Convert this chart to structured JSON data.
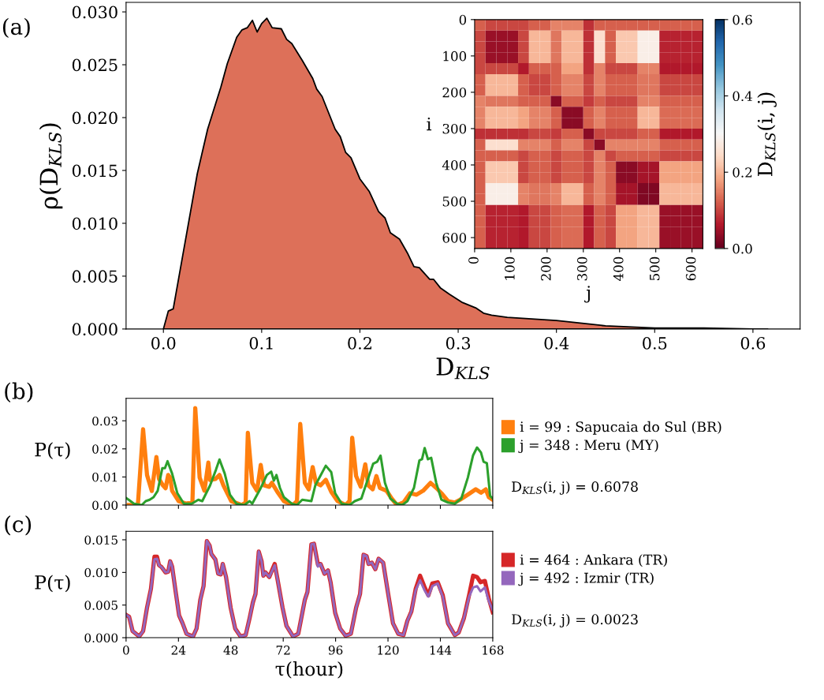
{
  "chart_data": [
    {
      "type": "area",
      "title": "(a)",
      "xlabel": "D$_{KLS}$",
      "ylabel": "ρ(D$_{KLS}$)",
      "x": [
        0.0,
        0.005,
        0.01,
        0.0345,
        0.045,
        0.0585,
        0.065,
        0.0746,
        0.08,
        0.0853,
        0.0906,
        0.0954,
        0.1,
        0.1053,
        0.1107,
        0.12,
        0.1254,
        0.1307,
        0.1414,
        0.152,
        0.156,
        0.1615,
        0.1748,
        0.18,
        0.1855,
        0.1909,
        0.2,
        0.2096,
        0.219,
        0.2256,
        0.231,
        0.2403,
        0.2483,
        0.255,
        0.2604,
        0.271,
        0.275,
        0.2818,
        0.291,
        0.3045,
        0.3178,
        0.3258,
        0.334,
        0.35,
        0.4,
        0.43,
        0.45,
        0.5,
        0.55,
        0.6,
        0.615
      ],
      "series": [
        {
          "color": "#000000",
          "values": [
            0.0,
            0.0017,
            0.0019,
            0.0147,
            0.0189,
            0.0229,
            0.0251,
            0.0276,
            0.0283,
            0.0285,
            0.0292,
            0.0281,
            0.0289,
            0.0294,
            0.0285,
            0.0284,
            0.0274,
            0.027,
            0.0254,
            0.0237,
            0.0227,
            0.022,
            0.0189,
            0.0182,
            0.0167,
            0.0162,
            0.0142,
            0.013,
            0.0111,
            0.0105,
            0.0091,
            0.0085,
            0.0072,
            0.0059,
            0.0058,
            0.0047,
            0.0047,
            0.0039,
            0.0033,
            0.0025,
            0.002,
            0.0015,
            0.0013,
            0.0011,
            0.0008,
            0.0005,
            0.0003,
            0.0001,
            0.0001,
            0.0,
            0.0
          ]
        }
      ],
      "xlim": [
        -0.038,
        0.648
      ],
      "ylim": [
        0,
        0.0309
      ],
      "xticks": [
        {
          "value": 0.0,
          "label": "0.0"
        },
        0.1,
        0.2,
        0.3,
        0.4,
        0.5,
        0.6
      ],
      "yticks": [
        {
          "value": 0,
          "label": "0.000"
        },
        {
          "value": 0.005,
          "label": "0.005"
        },
        {
          "value": 0.01,
          "label": "0.010"
        },
        {
          "value": 0.015,
          "label": "0.015"
        },
        {
          "value": 0.02,
          "label": "0.020"
        },
        {
          "value": 0.025,
          "label": "0.025"
        },
        {
          "value": 0.03,
          "label": "0.030"
        }
      ]
    },
    {
      "type": "heatmap",
      "xlabel": "j",
      "ylabel": "i",
      "clabel": "D$_{KLS}$(i, j)",
      "x": [
        15,
        45,
        75,
        105,
        135,
        165,
        195,
        225,
        255,
        285,
        315,
        345,
        375,
        405,
        435,
        465,
        495,
        525,
        555,
        585,
        615
      ],
      "cells": [
        [
          0.12,
          0.1,
          0.1,
          0.1,
          0.1,
          0.12,
          0.12,
          0.15,
          0.15,
          0.15,
          0.08,
          0.12,
          0.12,
          0.12,
          0.12,
          0.12,
          0.12,
          0.12,
          0.12,
          0.12,
          0.12
        ],
        [
          0.1,
          0.04,
          0.04,
          0.04,
          0.1,
          0.2,
          0.2,
          0.14,
          0.2,
          0.2,
          0.08,
          0.25,
          0.12,
          0.22,
          0.22,
          0.28,
          0.28,
          0.07,
          0.07,
          0.07,
          0.07
        ],
        [
          0.1,
          0.04,
          0.04,
          0.04,
          0.1,
          0.2,
          0.2,
          0.14,
          0.2,
          0.2,
          0.08,
          0.25,
          0.12,
          0.22,
          0.22,
          0.28,
          0.28,
          0.07,
          0.07,
          0.07,
          0.07
        ],
        [
          0.1,
          0.04,
          0.04,
          0.04,
          0.1,
          0.2,
          0.2,
          0.14,
          0.2,
          0.2,
          0.08,
          0.25,
          0.12,
          0.22,
          0.22,
          0.28,
          0.28,
          0.07,
          0.07,
          0.07,
          0.07
        ],
        [
          0.1,
          0.1,
          0.1,
          0.1,
          0.06,
          0.12,
          0.12,
          0.12,
          0.18,
          0.18,
          0.08,
          0.15,
          0.1,
          0.1,
          0.1,
          0.15,
          0.15,
          0.06,
          0.06,
          0.06,
          0.06
        ],
        [
          0.12,
          0.2,
          0.2,
          0.2,
          0.12,
          0.1,
          0.1,
          0.12,
          0.15,
          0.15,
          0.1,
          0.15,
          0.12,
          0.12,
          0.12,
          0.14,
          0.14,
          0.1,
          0.1,
          0.1,
          0.1
        ],
        [
          0.12,
          0.2,
          0.2,
          0.2,
          0.12,
          0.1,
          0.1,
          0.12,
          0.15,
          0.15,
          0.1,
          0.15,
          0.12,
          0.12,
          0.12,
          0.14,
          0.14,
          0.1,
          0.1,
          0.1,
          0.1
        ],
        [
          0.15,
          0.14,
          0.14,
          0.14,
          0.12,
          0.12,
          0.12,
          0.03,
          0.12,
          0.12,
          0.09,
          0.12,
          0.1,
          0.1,
          0.1,
          0.15,
          0.15,
          0.12,
          0.12,
          0.12,
          0.12
        ],
        [
          0.15,
          0.2,
          0.2,
          0.2,
          0.18,
          0.15,
          0.15,
          0.12,
          0.03,
          0.03,
          0.12,
          0.15,
          0.12,
          0.12,
          0.12,
          0.2,
          0.2,
          0.13,
          0.13,
          0.13,
          0.13
        ],
        [
          0.15,
          0.2,
          0.2,
          0.2,
          0.18,
          0.15,
          0.15,
          0.12,
          0.03,
          0.03,
          0.12,
          0.15,
          0.12,
          0.12,
          0.12,
          0.2,
          0.2,
          0.13,
          0.13,
          0.13,
          0.13
        ],
        [
          0.08,
          0.08,
          0.08,
          0.08,
          0.08,
          0.1,
          0.1,
          0.09,
          0.12,
          0.12,
          0.03,
          0.1,
          0.1,
          0.1,
          0.1,
          0.12,
          0.12,
          0.06,
          0.06,
          0.06,
          0.06
        ],
        [
          0.12,
          0.25,
          0.25,
          0.25,
          0.15,
          0.15,
          0.15,
          0.12,
          0.15,
          0.15,
          0.1,
          0.03,
          0.15,
          0.15,
          0.15,
          0.15,
          0.15,
          0.12,
          0.12,
          0.12,
          0.12
        ],
        [
          0.12,
          0.12,
          0.12,
          0.12,
          0.1,
          0.12,
          0.12,
          0.1,
          0.12,
          0.12,
          0.1,
          0.15,
          0.1,
          0.12,
          0.12,
          0.12,
          0.12,
          0.1,
          0.1,
          0.1,
          0.1
        ],
        [
          0.12,
          0.22,
          0.22,
          0.22,
          0.1,
          0.12,
          0.12,
          0.1,
          0.12,
          0.12,
          0.1,
          0.15,
          0.12,
          0.03,
          0.03,
          0.05,
          0.05,
          0.18,
          0.18,
          0.18,
          0.18
        ],
        [
          0.12,
          0.22,
          0.22,
          0.22,
          0.1,
          0.12,
          0.12,
          0.1,
          0.12,
          0.12,
          0.1,
          0.15,
          0.12,
          0.03,
          0.03,
          0.05,
          0.05,
          0.18,
          0.18,
          0.18,
          0.18
        ],
        [
          0.12,
          0.28,
          0.28,
          0.28,
          0.15,
          0.14,
          0.14,
          0.15,
          0.2,
          0.2,
          0.12,
          0.15,
          0.12,
          0.05,
          0.05,
          0.02,
          0.02,
          0.2,
          0.2,
          0.2,
          0.2
        ],
        [
          0.12,
          0.28,
          0.28,
          0.28,
          0.15,
          0.14,
          0.14,
          0.15,
          0.2,
          0.2,
          0.12,
          0.15,
          0.12,
          0.05,
          0.05,
          0.02,
          0.02,
          0.2,
          0.2,
          0.2,
          0.2
        ],
        [
          0.12,
          0.07,
          0.07,
          0.07,
          0.06,
          0.1,
          0.1,
          0.12,
          0.13,
          0.13,
          0.06,
          0.12,
          0.1,
          0.18,
          0.18,
          0.2,
          0.2,
          0.04,
          0.04,
          0.04,
          0.04
        ],
        [
          0.12,
          0.07,
          0.07,
          0.07,
          0.06,
          0.1,
          0.1,
          0.12,
          0.13,
          0.13,
          0.06,
          0.12,
          0.1,
          0.18,
          0.18,
          0.2,
          0.2,
          0.04,
          0.04,
          0.04,
          0.04
        ],
        [
          0.12,
          0.07,
          0.07,
          0.07,
          0.06,
          0.1,
          0.1,
          0.12,
          0.13,
          0.13,
          0.06,
          0.12,
          0.1,
          0.18,
          0.18,
          0.2,
          0.2,
          0.04,
          0.04,
          0.04,
          0.04
        ],
        [
          0.12,
          0.07,
          0.07,
          0.07,
          0.06,
          0.1,
          0.1,
          0.12,
          0.13,
          0.13,
          0.06,
          0.12,
          0.1,
          0.18,
          0.18,
          0.2,
          0.2,
          0.04,
          0.04,
          0.04,
          0.04
        ]
      ],
      "xlim": [
        0,
        630
      ],
      "ylim": [
        630,
        0
      ],
      "xticks": [
        0,
        100,
        200,
        300,
        400,
        500,
        600
      ],
      "yticks": [
        0,
        100,
        200,
        300,
        400,
        500,
        600
      ],
      "clim": [
        0,
        0.6
      ],
      "cticks": [
        {
          "value": 0,
          "label": "0.0"
        },
        0.2,
        0.4,
        0.6
      ]
    },
    {
      "type": "line",
      "title": "(b)",
      "ylabel": "P(τ)",
      "legend": "right",
      "tick_labels": "y",
      "annotations": [
        "D$_{KLS}$(i, j) = 0.6078"
      ],
      "xlim": [
        0,
        168
      ],
      "ylim": [
        0,
        0.038
      ],
      "xticks": [
        0,
        24,
        48,
        72,
        96,
        120,
        144,
        168
      ],
      "yticks": [
        {
          "value": 0,
          "label": "0.00"
        },
        {
          "value": 0.01,
          "label": "0.01"
        },
        {
          "value": 0.02,
          "label": "0.02"
        },
        {
          "value": 0.03,
          "label": "0.03"
        }
      ],
      "series": [
        {
          "name": "i = 99 : Sapucaia do Sul (BR)",
          "color": "#ff7f0e",
          "x": [
            1.2,
            5.4,
            7.8,
            9.6,
            11.8,
            13.9,
            15.1,
            16.9,
            18.1,
            19.3,
            20.2,
            21.1,
            24.1,
            27.7,
            30.4,
            31.7,
            33.7,
            35.9,
            37.7,
            38.5,
            41,
            42.8,
            44.6,
            48.2,
            53,
            54.8,
            55.8,
            57.8,
            60,
            61.7,
            63.2,
            65.6,
            66.8,
            69.3,
            72.3,
            76.5,
            78.3,
            79.8,
            81.9,
            83.7,
            85.5,
            87,
            89.1,
            91.5,
            94,
            96.9,
            100.6,
            102.4,
            103.6,
            105.4,
            107.5,
            109.6,
            111,
            113,
            114.7,
            116.3,
            119.3,
            121.7,
            124.1,
            127.1,
            130.1,
            133.1,
            136.1,
            139.5,
            142.1,
            144.5,
            147.5,
            150.6,
            153,
            156.6,
            160.2,
            162.6,
            164.8,
            166.2,
            168
          ],
          "values": [
            0.0,
            0.0,
            0.027,
            0.0107,
            0.005,
            0.0171,
            0.0093,
            0.007,
            0.006,
            0.0107,
            0.0098,
            0.0051,
            0.0014,
            0.0005,
            0.001,
            0.0345,
            0.0098,
            0.0051,
            0.0151,
            0.0089,
            0.0093,
            0.0107,
            0.007,
            0.0014,
            0.0,
            0.0009,
            0.0257,
            0.0079,
            0.0051,
            0.0143,
            0.007,
            0.0065,
            0.0079,
            0.0047,
            0.0014,
            0.0,
            0.0014,
            0.0289,
            0.0079,
            0.0056,
            0.0135,
            0.0079,
            0.007,
            0.009,
            0.0047,
            0.0014,
            0.0,
            0.0014,
            0.024,
            0.0103,
            0.0065,
            0.0145,
            0.007,
            0.0056,
            0.0103,
            0.0061,
            0.0051,
            0.0023,
            0.0,
            0.0009,
            0.0042,
            0.0037,
            0.0051,
            0.0079,
            0.0061,
            0.0042,
            0.0014,
            0.0009,
            0.0019,
            0.0037,
            0.0056,
            0.0044,
            0.0056,
            0.0028,
            0.0019
          ]
        },
        {
          "name": "j = 348 : Meru (MY)",
          "color": "#2ca02c",
          "x": [
            0,
            1.2,
            3.6,
            7.2,
            9,
            10.8,
            12.6,
            14.5,
            16.6,
            17.8,
            19,
            21.1,
            23.5,
            26.5,
            30.1,
            33.1,
            34.9,
            38.5,
            41.2,
            42.8,
            45.2,
            47.6,
            50.6,
            54.2,
            56.6,
            57.8,
            61.4,
            64.5,
            66.5,
            67.7,
            68.9,
            70.5,
            72.3,
            75.9,
            78.3,
            80.7,
            84.9,
            86.7,
            91.5,
            94,
            95.8,
            98.8,
            102.4,
            104.8,
            107.8,
            109.6,
            113.2,
            115,
            116.6,
            118.6,
            121.1,
            124.1,
            126.5,
            128.9,
            131.9,
            134.4,
            135.6,
            136.8,
            138.3,
            139.8,
            142.1,
            144.5,
            147.5,
            150.6,
            153.6,
            156.6,
            159,
            160.8,
            162.6,
            163.8,
            165.3,
            166.8,
            168
          ],
          "values": [
            0.0025,
            0.0019,
            0.0005,
            0.0,
            0.0014,
            0.0019,
            0.0028,
            0.0051,
            0.0131,
            0.0131,
            0.0156,
            0.0112,
            0.0042,
            0.0005,
            0.0005,
            0.0019,
            0.0014,
            0.007,
            0.0126,
            0.0162,
            0.0112,
            0.0037,
            0.0005,
            0.0,
            0.0014,
            0.0005,
            0.0056,
            0.0107,
            0.0119,
            0.0087,
            0.0107,
            0.0061,
            0.0028,
            0.0005,
            0.0,
            0.0019,
            0.0014,
            0.007,
            0.014,
            0.0117,
            0.0042,
            0.0005,
            0.0,
            0.0014,
            0.0023,
            0.0065,
            0.0147,
            0.0154,
            0.0176,
            0.0079,
            0.0023,
            0.0005,
            0.0,
            0.0014,
            0.0061,
            0.0159,
            0.0163,
            0.0203,
            0.0163,
            0.0168,
            0.0079,
            0.0019,
            0.0009,
            0.0005,
            0.0023,
            0.0098,
            0.0177,
            0.0205,
            0.0187,
            0.0154,
            0.0149,
            0.0033,
            0.0023
          ]
        }
      ]
    },
    {
      "type": "line",
      "title": "(c)",
      "xlabel": "τ(hour)",
      "ylabel": "P(τ)",
      "legend": "right",
      "annotations": [
        "D$_{KLS}$(i, j) = 0.0023"
      ],
      "xlim": [
        0,
        168
      ],
      "ylim": [
        0,
        0.0163
      ],
      "xticks": [
        0,
        24,
        48,
        72,
        96,
        120,
        144,
        168
      ],
      "yticks": [
        {
          "value": 0,
          "label": "0.000"
        },
        {
          "value": 0.005,
          "label": "0.005"
        },
        {
          "value": 0.01,
          "label": "0.010"
        },
        {
          "value": 0.015,
          "label": "0.015"
        }
      ],
      "series": [
        {
          "name": "i = 464 : Ankara (TR)",
          "color": "#d62728",
          "x": [
            0,
            1.4,
            3,
            6,
            7.8,
            9.6,
            11.4,
            13,
            14.2,
            15.1,
            16.3,
            18.1,
            19.3,
            20.2,
            21.1,
            22.7,
            24.3,
            25.9,
            27.7,
            30.7,
            32.3,
            34,
            35.5,
            37,
            38.3,
            39.1,
            40.9,
            42.2,
            43.4,
            44.3,
            45.8,
            47.9,
            50,
            52.4,
            54.8,
            56.6,
            58.1,
            59.3,
            60.8,
            62.1,
            62.9,
            63.9,
            65.6,
            68.1,
            69.3,
            71.7,
            73.5,
            76.5,
            78.9,
            81.9,
            83.1,
            84.9,
            86.1,
            87.9,
            89.1,
            90.9,
            92.5,
            93.7,
            95.8,
            98.1,
            100.6,
            103,
            105.4,
            107.2,
            108.8,
            110.2,
            111.1,
            112.6,
            114.2,
            115.7,
            117.8,
            119.9,
            122.3,
            124.7,
            127.1,
            128.9,
            130.7,
            132.7,
            134.7,
            136.7,
            138.5,
            140.3,
            142.8,
            145.1,
            147.5,
            150.6,
            152.4,
            154.8,
            157.2,
            159,
            160.8,
            162.4,
            164.4,
            166.2,
            168
          ],
          "values": [
            0.0035,
            0.0032,
            0.001,
            0.0002,
            0.001,
            0.0046,
            0.0075,
            0.0124,
            0.0124,
            0.0111,
            0.0108,
            0.01,
            0.0101,
            0.0117,
            0.0109,
            0.0071,
            0.0034,
            0.0022,
            0.0006,
            0.0002,
            0.0014,
            0.0058,
            0.0079,
            0.0148,
            0.0141,
            0.0128,
            0.012,
            0.0098,
            0.0097,
            0.0113,
            0.0093,
            0.0046,
            0.0014,
            0.0002,
            0.0004,
            0.003,
            0.0054,
            0.0067,
            0.0132,
            0.0117,
            0.0095,
            0.01,
            0.0093,
            0.0113,
            0.0091,
            0.0046,
            0.0018,
            0.0002,
            0.0006,
            0.0058,
            0.007,
            0.0143,
            0.0144,
            0.0112,
            0.0113,
            0.0098,
            0.0103,
            0.0085,
            0.0038,
            0.0014,
            0.0003,
            0.0006,
            0.0046,
            0.0067,
            0.0127,
            0.0125,
            0.0113,
            0.0115,
            0.0105,
            0.0121,
            0.0115,
            0.0071,
            0.0022,
            0.0006,
            0.0004,
            0.0026,
            0.004,
            0.0075,
            0.0095,
            0.0078,
            0.0065,
            0.0083,
            0.0085,
            0.0065,
            0.0022,
            0.0004,
            0.0008,
            0.003,
            0.0066,
            0.0095,
            0.0093,
            0.0085,
            0.0087,
            0.006,
            0.0039
          ]
        },
        {
          "name": "j = 492 : Izmir (TR)",
          "color": "#9467bd",
          "x": [
            0,
            1.4,
            3,
            6,
            7.8,
            9.6,
            11.4,
            13,
            14.2,
            15.1,
            16.3,
            18.1,
            19.3,
            20.2,
            21.1,
            22.7,
            24.3,
            25.9,
            27.7,
            30.7,
            32.3,
            34,
            35.5,
            37,
            38.3,
            39.1,
            40.9,
            42.2,
            43.4,
            44.3,
            45.8,
            47.9,
            50,
            52.4,
            54.8,
            56.6,
            58.1,
            59.3,
            60.8,
            62.1,
            62.9,
            63.9,
            65.6,
            68.1,
            69.3,
            71.7,
            73.5,
            76.5,
            78.9,
            81.9,
            83.1,
            84.9,
            86.1,
            87.9,
            89.1,
            90.9,
            92.5,
            93.7,
            95.8,
            98.1,
            100.6,
            103,
            105.4,
            107.2,
            108.8,
            110.2,
            111.1,
            112.6,
            114.2,
            115.7,
            117.8,
            119.9,
            122.3,
            124.7,
            127.1,
            128.9,
            130.7,
            132.7,
            134.7,
            136.7,
            138.5,
            140.3,
            142.8,
            145.1,
            147.5,
            150.6,
            152.4,
            154.8,
            157.2,
            159,
            160.8,
            162.4,
            164.4,
            166.2,
            168
          ],
          "values": [
            0.0035,
            0.0032,
            0.001,
            0.0002,
            0.001,
            0.0046,
            0.0075,
            0.012,
            0.0121,
            0.0111,
            0.0108,
            0.01,
            0.0101,
            0.0117,
            0.0109,
            0.0071,
            0.0034,
            0.0022,
            0.0006,
            0.0002,
            0.0014,
            0.0058,
            0.0079,
            0.0148,
            0.0141,
            0.0128,
            0.012,
            0.0098,
            0.0097,
            0.0113,
            0.0093,
            0.0046,
            0.0014,
            0.0002,
            0.0004,
            0.003,
            0.0054,
            0.0067,
            0.0132,
            0.0117,
            0.0095,
            0.01,
            0.0093,
            0.0111,
            0.0091,
            0.0046,
            0.0018,
            0.0002,
            0.0006,
            0.0058,
            0.007,
            0.0143,
            0.0144,
            0.0109,
            0.0113,
            0.0098,
            0.0103,
            0.0085,
            0.0038,
            0.0014,
            0.0003,
            0.0006,
            0.0046,
            0.0067,
            0.0127,
            0.0125,
            0.0113,
            0.0115,
            0.0105,
            0.0121,
            0.0115,
            0.0071,
            0.0022,
            0.0006,
            0.0004,
            0.0026,
            0.004,
            0.0073,
            0.0088,
            0.0073,
            0.0063,
            0.0079,
            0.0083,
            0.0063,
            0.0022,
            0.0004,
            0.0008,
            0.003,
            0.0063,
            0.0077,
            0.0079,
            0.0071,
            0.0077,
            0.0056,
            0.0042
          ]
        }
      ]
    }
  ]
}
